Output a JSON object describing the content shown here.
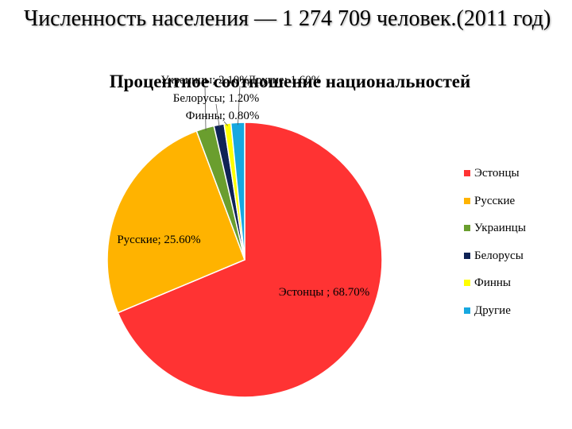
{
  "page": {
    "title": "Численность населения — 1 274 709 человек.(2011 год)"
  },
  "chart_data": {
    "type": "pie",
    "title": "Процентное соотношение национальностей",
    "start_angle_deg": 0,
    "direction": "clockwise",
    "slices": [
      {
        "name": "Эстонцы",
        "value": 68.7,
        "label": "Эстонцы ; 68.70%",
        "color": "#ff3333"
      },
      {
        "name": "Русские",
        "value": 25.6,
        "label": "Русские; 25.60%",
        "color": "#ffb300"
      },
      {
        "name": "Украинцы",
        "value": 2.1,
        "label": "Украинцы; 2.10%",
        "color": "#6a9e2e"
      },
      {
        "name": "Белорусы",
        "value": 1.2,
        "label": "Белорусы; 1.20%",
        "color": "#0f2356"
      },
      {
        "name": "Финны",
        "value": 0.8,
        "label": "Финны; 0.80%",
        "color": "#ffff00"
      },
      {
        "name": "Другие",
        "value": 1.6,
        "label": "Другие; 1.60%",
        "color": "#17a8e0"
      }
    ],
    "legend": {
      "position": "right",
      "items": [
        "Эстонцы",
        "Русские",
        "Украинцы",
        "Белорусы",
        "Финны",
        "Другие"
      ]
    }
  }
}
